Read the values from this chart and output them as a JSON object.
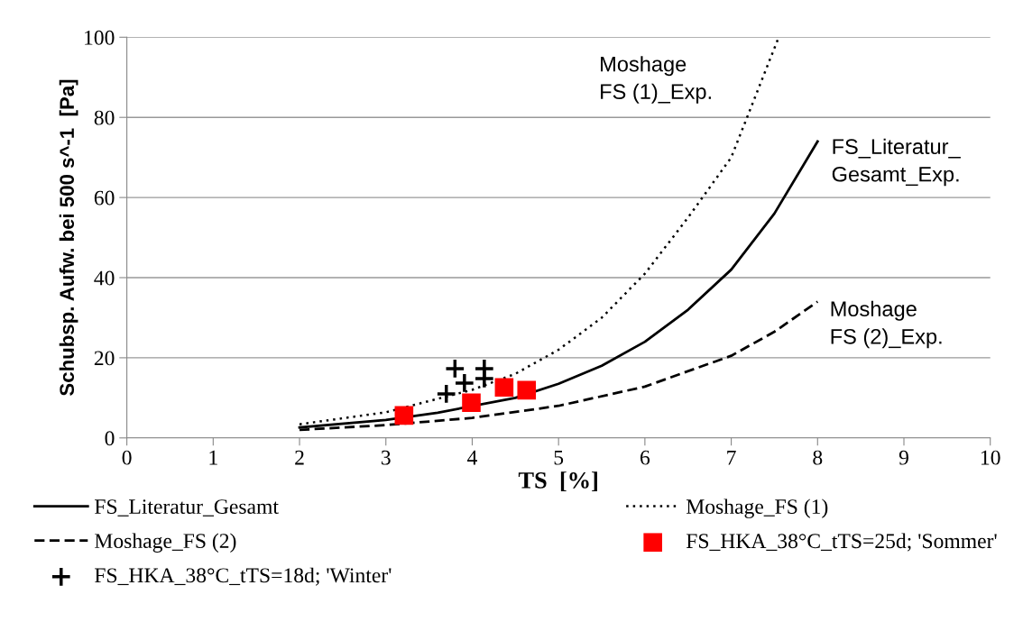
{
  "chart_data": {
    "type": "line",
    "xlabel": "TS  [%]",
    "ylabel": "Schubsp. Aufw. bei 500 s^-1  [Pa]",
    "xlim": [
      0,
      10
    ],
    "xticks": [
      0,
      1,
      2,
      3,
      4,
      5,
      6,
      7,
      8,
      9,
      10
    ],
    "ylim": [
      0,
      100
    ],
    "yticks": [
      0,
      20,
      40,
      60,
      80,
      100
    ],
    "grid": "y",
    "legend": "bottom",
    "series": [
      {
        "name": "FS_Literatur_Gesamt",
        "line_style": "solid",
        "color": "#000000",
        "x": [
          2,
          3,
          3.6,
          4.5,
          5,
          5.5,
          6,
          6.5,
          7,
          7.5,
          8
        ],
        "values": [
          2.6,
          4.5,
          6.3,
          10,
          13.5,
          18,
          24,
          32,
          42,
          56,
          74
        ]
      },
      {
        "name": "Moshage_FS (1)",
        "line_style": "dotted",
        "color": "#000000",
        "x": [
          2,
          3,
          4,
          4.5,
          5,
          5.5,
          6,
          6.5,
          7,
          7.55
        ],
        "values": [
          3.4,
          6.4,
          12,
          16,
          22,
          30,
          41,
          55,
          70,
          100
        ]
      },
      {
        "name": "Moshage_FS (2)",
        "line_style": "dashed",
        "color": "#000000",
        "x": [
          2,
          3,
          4,
          5,
          6,
          7,
          7.5,
          8
        ],
        "values": [
          2.0,
          3.2,
          5.0,
          8.0,
          12.8,
          20.5,
          26.5,
          34
        ]
      },
      {
        "name": "FS_HKA_38°C_tTS=25d; 'Sommer'",
        "type": "scatter",
        "marker": "square",
        "color": "#ff0000",
        "x": [
          3.21,
          3.99,
          4.37,
          4.63
        ],
        "values": [
          5.6,
          8.8,
          12.6,
          11.9
        ]
      },
      {
        "name": "FS_HKA_38°C_tTS=18d; 'Winter'",
        "type": "scatter",
        "marker": "cross",
        "color": "#000000",
        "x": [
          3.7,
          3.8,
          3.91,
          4.14,
          4.14
        ],
        "values": [
          11.0,
          17.3,
          13.7,
          14.8,
          17.3
        ]
      }
    ],
    "annotations": [
      "Moshage\nFS (1)_Exp.",
      "FS_Literatur_\nGesamt_Exp.",
      "Moshage\nFS (2)_Exp."
    ]
  }
}
